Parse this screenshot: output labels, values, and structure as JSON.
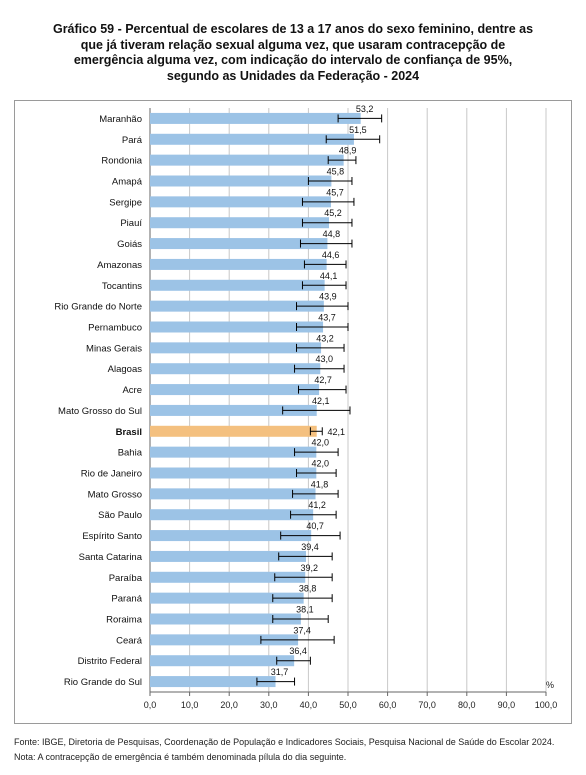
{
  "title_lines": [
    "Gráfico 59 - Percentual de escolares de 13 a 17 anos do sexo feminino, dentre as",
    "que já tiveram relação sexual alguma vez, que usaram contracepção de",
    "emergência alguma vez, com indicação do intervalo de confiança de 95%,",
    "segundo as Unidades da Federação - 2024"
  ],
  "source": "Fonte: IBGE, Diretoria de Pesquisas, Coordenação de População e Indicadores Sociais, Pesquisa Nacional de Saúde do Escolar 2024.",
  "note": "Nota: A contracepção de emergência é também denominada pílula do dia seguinte.",
  "colors": {
    "bar": "#9cc3e6",
    "highlight": "#f4c07f",
    "grid": "#c8c8c8",
    "errorbar": "#000000"
  },
  "chart_data": {
    "type": "bar",
    "orientation": "horizontal",
    "unit_label": "%",
    "xlim": [
      0,
      100
    ],
    "xticks": [
      "0,0",
      "10,0",
      "20,0",
      "30,0",
      "40,0",
      "50,0",
      "60,0",
      "70,0",
      "80,0",
      "90,0",
      "100,0"
    ],
    "grid": true,
    "highlight": "Brasil",
    "categories": [
      "Maranhão",
      "Pará",
      "Rondonia",
      "Amapá",
      "Sergipe",
      "Piauí",
      "Goiás",
      "Amazonas",
      "Tocantins",
      "Rio Grande do Norte",
      "Pernambuco",
      "Minas Gerais",
      "Alagoas",
      "Acre",
      "Mato Grosso do Sul",
      "Brasil",
      "Bahia",
      "Rio de Janeiro",
      "Mato Grosso",
      "São Paulo",
      "Espírito Santo",
      "Santa Catarina",
      "Paraíba",
      "Paraná",
      "Roraima",
      "Ceará",
      "Distrito Federal",
      "Rio Grande do Sul"
    ],
    "values": [
      53.2,
      51.5,
      48.9,
      45.8,
      45.7,
      45.2,
      44.8,
      44.6,
      44.1,
      43.9,
      43.7,
      43.2,
      43.0,
      42.7,
      42.1,
      42.1,
      42.0,
      42.0,
      41.8,
      41.2,
      40.7,
      39.4,
      39.2,
      38.8,
      38.1,
      37.4,
      36.4,
      31.7
    ],
    "labels": [
      "53,2",
      "51,5",
      "48,9",
      "45,8",
      "45,7",
      "45,2",
      "44,8",
      "44,6",
      "44,1",
      "43,9",
      "43,7",
      "43,2",
      "43,0",
      "42,7",
      "42,1",
      "42,1",
      "42,0",
      "42,0",
      "41,8",
      "41,2",
      "40,7",
      "39,4",
      "39,2",
      "38,8",
      "38,1",
      "37,4",
      "36,4",
      "31,7"
    ],
    "ci_lower": [
      47.5,
      44.5,
      45.0,
      40.0,
      38.5,
      38.5,
      38.0,
      39.0,
      38.5,
      37.0,
      37.0,
      37.0,
      36.5,
      37.5,
      33.5,
      40.5,
      36.5,
      37.0,
      36.0,
      35.5,
      33.0,
      32.5,
      31.5,
      31.0,
      31.0,
      28.0,
      32.0,
      27.0
    ],
    "ci_upper": [
      58.5,
      58.0,
      52.0,
      51.0,
      51.5,
      51.0,
      51.0,
      49.5,
      49.5,
      50.0,
      50.0,
      49.0,
      49.0,
      49.5,
      50.5,
      43.5,
      47.5,
      47.0,
      47.5,
      47.0,
      48.0,
      46.0,
      46.0,
      46.0,
      45.0,
      46.5,
      40.5,
      36.5
    ]
  }
}
